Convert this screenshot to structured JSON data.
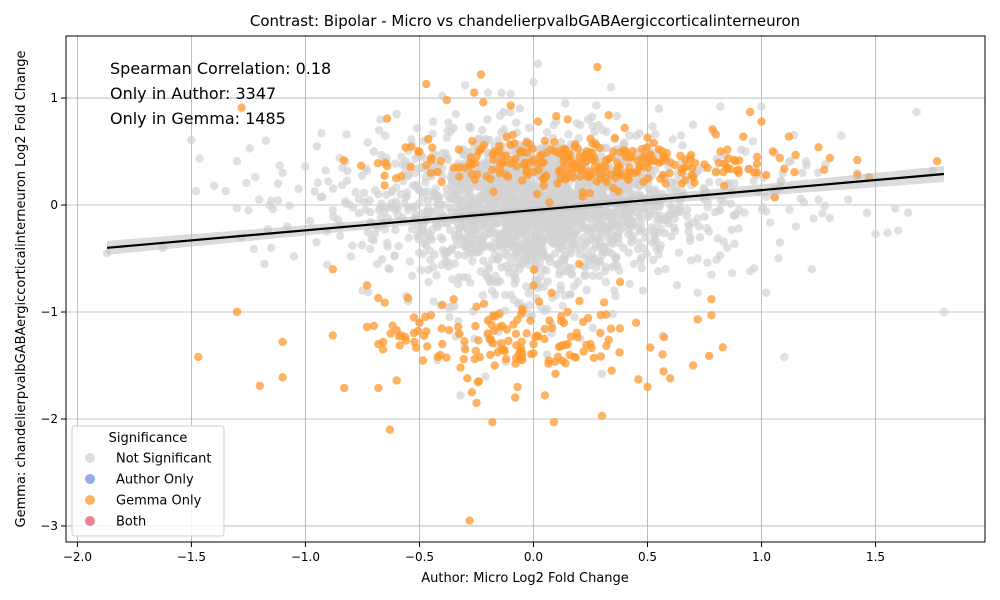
{
  "chart_data": {
    "type": "scatter",
    "title": "Contrast: Bipolar - Micro vs chandelierpvalbGABAergiccorticalinterneuron",
    "xlabel": "Author: Micro Log2 Fold Change",
    "ylabel": "Gemma: chandelierpvalbGABAergiccorticalinterneuron Log2 Fold Change",
    "xlim": [
      -2.05,
      1.98
    ],
    "ylim": [
      -3.15,
      1.58
    ],
    "xticks": [
      -2.0,
      -1.5,
      -1.0,
      -0.5,
      0.0,
      0.5,
      1.0,
      1.5
    ],
    "xtick_labels": [
      "−2.0",
      "−1.5",
      "−1.0",
      "−0.5",
      "0.0",
      "0.5",
      "1.0",
      "1.5"
    ],
    "yticks": [
      -3,
      -2,
      -1,
      0,
      1
    ],
    "ytick_labels": [
      "−3",
      "−2",
      "−1",
      "0",
      "1"
    ],
    "grid": true,
    "annotations": [
      "Spearman Correlation: 0.18",
      "Only in Author: 3347",
      "Only in Gemma: 1485"
    ],
    "regression_line": {
      "x": [
        -1.87,
        1.8
      ],
      "y": [
        -0.4,
        0.29
      ]
    },
    "legend": {
      "title": "Significance",
      "position": "lower-left",
      "entries": [
        {
          "label": "Not Significant",
          "color": "#d3d3d3"
        },
        {
          "label": "Author Only",
          "color": "#6f8fe0"
        },
        {
          "label": "Gemma Only",
          "color": "#ff9a2e"
        },
        {
          "label": "Both",
          "color": "#e05a73"
        }
      ]
    },
    "series": [
      {
        "name": "Not Significant",
        "color": "#d3d3d3",
        "points": [
          [
            -1.87,
            -0.45
          ],
          [
            -1.5,
            0.61
          ],
          [
            -1.48,
            0.13
          ],
          [
            -1.4,
            0.18
          ],
          [
            -1.35,
            0.13
          ],
          [
            -1.3,
            0.41
          ],
          [
            -1.3,
            -0.03
          ],
          [
            -1.25,
            -0.05
          ],
          [
            -1.22,
            0.26
          ],
          [
            -1.18,
            -0.55
          ],
          [
            -1.15,
            -0.4
          ],
          [
            -1.15,
            0.04
          ],
          [
            -1.12,
            0.2
          ],
          [
            -1.1,
            0.3
          ],
          [
            -1.08,
            -0.2
          ],
          [
            -1.05,
            -0.48
          ],
          [
            -1.03,
            0.15
          ],
          [
            -1.0,
            0.36
          ],
          [
            -0.98,
            -0.15
          ],
          [
            -0.95,
            0.55
          ],
          [
            -0.93,
            0.67
          ],
          [
            -0.9,
            0.22
          ],
          [
            -0.88,
            -0.05
          ],
          [
            -0.85,
            0.44
          ],
          [
            -0.82,
            0.66
          ],
          [
            -0.8,
            -0.48
          ],
          [
            -0.78,
            0.12
          ],
          [
            -0.75,
            -0.8
          ],
          [
            -0.73,
            0.32
          ],
          [
            -0.7,
            -0.33
          ],
          [
            -0.68,
            0.1
          ],
          [
            -0.65,
            0.65
          ],
          [
            -0.63,
            -0.6
          ],
          [
            -0.6,
            0.85
          ],
          [
            -0.58,
            0.45
          ],
          [
            -0.55,
            -0.9
          ],
          [
            -0.52,
            0.3
          ],
          [
            -0.5,
            -1.1
          ],
          [
            -0.48,
            0.6
          ],
          [
            -0.46,
            -0.72
          ],
          [
            -0.44,
            0.78
          ],
          [
            -0.42,
            -1.45
          ],
          [
            -0.4,
            1.02
          ],
          [
            -0.38,
            0.15
          ],
          [
            -0.36,
            -0.95
          ],
          [
            -0.34,
            0.85
          ],
          [
            -0.32,
            -1.78
          ],
          [
            -0.3,
            1.12
          ],
          [
            -0.28,
            0.4
          ],
          [
            -0.26,
            -1.25
          ],
          [
            -0.24,
            0.62
          ],
          [
            -0.22,
            -0.52
          ],
          [
            -0.2,
            1.05
          ],
          [
            -0.18,
            0.2
          ],
          [
            -0.16,
            -1.3
          ],
          [
            -0.14,
            0.55
          ],
          [
            -0.12,
            -0.25
          ],
          [
            -0.1,
            1.04
          ],
          [
            -0.08,
            -0.65
          ],
          [
            -0.06,
            0.9
          ],
          [
            -0.04,
            0.1
          ],
          [
            -0.02,
            -1.02
          ],
          [
            0.0,
            1.15
          ],
          [
            0.02,
            1.32
          ],
          [
            0.04,
            -0.4
          ],
          [
            0.06,
            0.68
          ],
          [
            0.08,
            -1.2
          ],
          [
            0.1,
            0.3
          ],
          [
            0.12,
            -0.75
          ],
          [
            0.14,
            0.95
          ],
          [
            0.16,
            0.05
          ],
          [
            0.18,
            -1.05
          ],
          [
            0.2,
            0.42
          ],
          [
            0.22,
            -0.3
          ],
          [
            0.24,
            0.8
          ],
          [
            0.26,
            -1.15
          ],
          [
            0.28,
            0.55
          ],
          [
            0.3,
            -1.58
          ],
          [
            0.32,
            0.18
          ],
          [
            0.34,
            1.1
          ],
          [
            0.36,
            -0.85
          ],
          [
            0.38,
            0.35
          ],
          [
            0.4,
            -0.2
          ],
          [
            0.42,
            0.65
          ],
          [
            0.44,
            -0.55
          ],
          [
            0.46,
            0.2
          ],
          [
            0.48,
            -0.8
          ],
          [
            0.5,
            0.48
          ],
          [
            0.52,
            -0.35
          ],
          [
            0.55,
            0.9
          ],
          [
            0.58,
            -0.6
          ],
          [
            0.6,
            0.15
          ],
          [
            0.63,
            -0.75
          ],
          [
            0.65,
            0.4
          ],
          [
            0.68,
            -0.25
          ],
          [
            0.7,
            0.75
          ],
          [
            0.72,
            -0.5
          ],
          [
            0.75,
            0.1
          ],
          [
            0.78,
            -0.65
          ],
          [
            0.8,
            0.32
          ],
          [
            0.82,
            0.92
          ],
          [
            0.85,
            -0.4
          ],
          [
            0.88,
            0.2
          ],
          [
            0.9,
            -0.22
          ],
          [
            0.93,
            0.5
          ],
          [
            0.95,
            -0.62
          ],
          [
            0.98,
            0.28
          ],
          [
            1.0,
            0.92
          ],
          [
            1.02,
            -0.82
          ],
          [
            1.05,
            0.15
          ],
          [
            1.08,
            -0.35
          ],
          [
            1.1,
            -1.42
          ],
          [
            1.12,
            0.4
          ],
          [
            1.15,
            -0.2
          ],
          [
            1.18,
            0.3
          ],
          [
            1.22,
            -0.6
          ],
          [
            1.25,
            0.05
          ],
          [
            1.28,
            0.38
          ],
          [
            1.3,
            -0.12
          ],
          [
            1.35,
            0.65
          ],
          [
            1.38,
            0.05
          ],
          [
            1.42,
            0.3
          ],
          [
            1.5,
            -0.27
          ],
          [
            1.6,
            -0.24
          ],
          [
            1.68,
            0.87
          ],
          [
            1.75,
            0.32
          ],
          [
            1.8,
            -1.0
          ],
          [
            -0.7,
            0.5
          ],
          [
            -0.3,
            -0.15
          ],
          [
            0.3,
            0.05
          ]
        ],
        "clusters": [
          {
            "cx": 0.0,
            "cy": 0.0,
            "sx": 0.32,
            "sy": 0.32,
            "n": 1300
          },
          {
            "cx": 0.1,
            "cy": 0.05,
            "sx": 0.52,
            "sy": 0.3,
            "n": 450
          },
          {
            "cx": 0.0,
            "cy": -0.25,
            "sx": 0.2,
            "sy": 0.45,
            "n": 260
          }
        ]
      },
      {
        "name": "Gemma Only",
        "color": "#ff9a2e",
        "points": [
          [
            -1.47,
            -1.42
          ],
          [
            -1.3,
            -1.0
          ],
          [
            -1.28,
            0.91
          ],
          [
            -1.2,
            -1.69
          ],
          [
            -1.1,
            -1.28
          ],
          [
            -1.1,
            -1.61
          ],
          [
            -0.88,
            -1.22
          ],
          [
            -0.88,
            -0.6
          ],
          [
            -0.83,
            -1.71
          ],
          [
            -0.73,
            -1.14
          ],
          [
            -0.73,
            -0.75
          ],
          [
            -0.7,
            -1.13
          ],
          [
            -0.68,
            -1.3
          ],
          [
            -0.68,
            -1.71
          ],
          [
            -0.66,
            -1.35
          ],
          [
            -0.63,
            -2.1
          ],
          [
            -0.6,
            -1.64
          ],
          [
            -0.6,
            -1.17
          ],
          [
            -0.58,
            -1.22
          ],
          [
            -0.55,
            -0.87
          ],
          [
            -0.47,
            -1.18
          ],
          [
            -0.47,
            1.13
          ],
          [
            -0.45,
            -1.03
          ],
          [
            -0.42,
            -1.42
          ],
          [
            -0.4,
            -1.3
          ],
          [
            -0.38,
            0.98
          ],
          [
            -0.37,
            -1.17
          ],
          [
            -0.35,
            -0.88
          ],
          [
            -0.33,
            -1.14
          ],
          [
            -0.32,
            -1.52
          ],
          [
            -0.3,
            -1.35
          ],
          [
            -0.29,
            -1.62
          ],
          [
            -0.28,
            -2.95
          ],
          [
            -0.27,
            -1.75
          ],
          [
            -0.26,
            1.05
          ],
          [
            -0.25,
            -1.85
          ],
          [
            -0.24,
            -1.65
          ],
          [
            -0.23,
            1.22
          ],
          [
            -0.22,
            0.96
          ],
          [
            -0.2,
            -1.08
          ],
          [
            -0.19,
            -1.4
          ],
          [
            -0.18,
            -2.03
          ],
          [
            -0.17,
            -1.5
          ],
          [
            -0.15,
            -1.02
          ],
          [
            -0.14,
            -1.35
          ],
          [
            -0.12,
            -1.44
          ],
          [
            -0.11,
            -1.27
          ],
          [
            -0.1,
            0.93
          ],
          [
            -0.08,
            -1.8
          ],
          [
            -0.07,
            -1.7
          ],
          [
            -0.05,
            -1.38
          ],
          [
            -0.03,
            -1.2
          ],
          [
            0.0,
            -0.75
          ],
          [
            0.02,
            0.78
          ],
          [
            0.05,
            -1.78
          ],
          [
            0.07,
            -1.08
          ],
          [
            0.09,
            -2.03
          ],
          [
            0.1,
            0.83
          ],
          [
            0.12,
            -1.32
          ],
          [
            0.14,
            -1.48
          ],
          [
            0.15,
            0.8
          ],
          [
            0.18,
            -1.42
          ],
          [
            0.2,
            -0.55
          ],
          [
            0.22,
            -1.37
          ],
          [
            0.25,
            0.62
          ],
          [
            0.28,
            1.29
          ],
          [
            0.3,
            -1.97
          ],
          [
            0.31,
            -0.91
          ],
          [
            0.33,
            -1.26
          ],
          [
            0.33,
            0.84
          ],
          [
            0.38,
            -0.72
          ],
          [
            0.4,
            0.72
          ],
          [
            0.43,
            0.45
          ],
          [
            0.45,
            -1.1
          ],
          [
            0.46,
            -1.63
          ],
          [
            0.5,
            -1.7
          ],
          [
            0.5,
            0.63
          ],
          [
            0.55,
            0.52
          ],
          [
            0.58,
            0.44
          ],
          [
            0.6,
            -1.62
          ],
          [
            0.65,
            0.3
          ],
          [
            0.7,
            -1.5
          ],
          [
            0.72,
            -1.07
          ],
          [
            0.75,
            0.38
          ],
          [
            0.77,
            -1.41
          ],
          [
            0.78,
            -1.03
          ],
          [
            0.78,
            -0.88
          ],
          [
            0.8,
            0.66
          ],
          [
            0.82,
            0.5
          ],
          [
            0.83,
            -1.33
          ],
          [
            0.85,
            0.35
          ],
          [
            0.88,
            0.42
          ],
          [
            0.9,
            0.3
          ],
          [
            0.92,
            0.64
          ],
          [
            0.95,
            0.87
          ],
          [
            0.98,
            0.45
          ],
          [
            1.0,
            0.78
          ],
          [
            1.02,
            0.28
          ],
          [
            1.05,
            0.5
          ],
          [
            1.08,
            0.44
          ],
          [
            1.1,
            0.34
          ],
          [
            1.12,
            0.64
          ],
          [
            1.25,
            0.54
          ],
          [
            1.3,
            0.44
          ],
          [
            1.42,
            0.42
          ],
          [
            1.42,
            0.28
          ],
          [
            1.77,
            0.41
          ],
          [
            -0.5,
            -1.1
          ],
          [
            -0.2,
            -1.2
          ],
          [
            0.0,
            -1.3
          ],
          [
            -0.15,
            0.55
          ],
          [
            -0.3,
            0.35
          ],
          [
            0.05,
            0.6
          ],
          [
            0.35,
            0.5
          ],
          [
            -0.45,
            0.3
          ],
          [
            0.6,
            0.4
          ],
          [
            -0.25,
            -0.95
          ],
          [
            0.15,
            -1.0
          ],
          [
            -0.05,
            -1.45
          ],
          [
            0.25,
            -1.3
          ]
        ],
        "clusters": [
          {
            "cx": 0.15,
            "cy": 0.38,
            "sx": 0.4,
            "sy": 0.12,
            "n": 260
          },
          {
            "cx": -0.1,
            "cy": -1.25,
            "sx": 0.28,
            "sy": 0.18,
            "n": 110
          }
        ]
      },
      {
        "name": "Author Only",
        "color": "#6f8fe0",
        "points": []
      },
      {
        "name": "Both",
        "color": "#e05a73",
        "points": []
      }
    ]
  }
}
